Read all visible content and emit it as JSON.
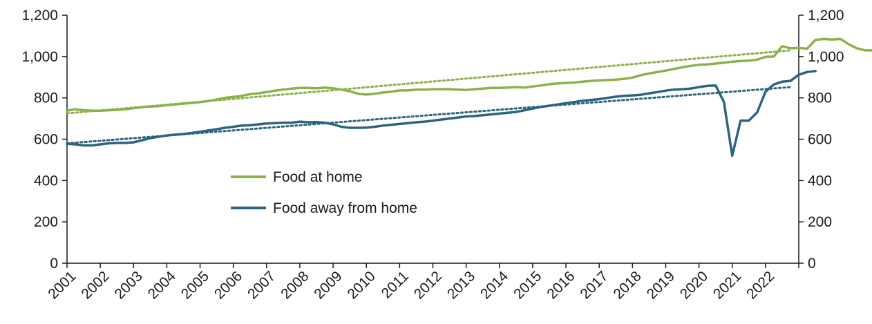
{
  "chart_data": {
    "type": "line",
    "title": "",
    "xlabel": "",
    "ylabel": "",
    "x_tick_labels": [
      "2001",
      "2002",
      "2003",
      "2004",
      "2005",
      "2006",
      "2007",
      "2008",
      "2009",
      "2010",
      "2011",
      "2012",
      "2013",
      "2014",
      "2015",
      "2016",
      "2017",
      "2018",
      "2019",
      "2020",
      "2021",
      "2022"
    ],
    "y_tick_labels": [
      "0",
      "200",
      "400",
      "600",
      "800",
      "1,000",
      "1,200"
    ],
    "ylim": [
      0,
      1200
    ],
    "xlim": [
      2001.0,
      2023.0
    ],
    "grid": false,
    "secondary_y_axis": true,
    "legend_position": "center-left",
    "series": [
      {
        "name": "Food at home",
        "color": "#8db04a",
        "x_start": 2001.0,
        "x_step": 0.25,
        "values": [
          738,
          745,
          740,
          738,
          738,
          740,
          742,
          745,
          750,
          755,
          758,
          760,
          765,
          768,
          772,
          775,
          780,
          785,
          792,
          800,
          805,
          810,
          818,
          822,
          828,
          835,
          840,
          845,
          848,
          848,
          846,
          850,
          846,
          840,
          832,
          820,
          816,
          820,
          826,
          830,
          836,
          836,
          840,
          840,
          842,
          842,
          842,
          840,
          838,
          842,
          845,
          848,
          848,
          850,
          852,
          850,
          855,
          860,
          866,
          870,
          872,
          874,
          878,
          882,
          884,
          886,
          888,
          892,
          898,
          910,
          918,
          925,
          932,
          940,
          948,
          955,
          960,
          962,
          966,
          970,
          975,
          978,
          980,
          985,
          998,
          1000,
          1050,
          1040,
          1042,
          1038,
          1080,
          1085,
          1082,
          1085,
          1060,
          1040,
          1030,
          1030
        ]
      },
      {
        "name": "Food away from home",
        "color": "#2c6480",
        "x_start": 2001.0,
        "x_step": 0.25,
        "values": [
          578,
          575,
          570,
          570,
          575,
          580,
          582,
          582,
          585,
          595,
          605,
          612,
          618,
          622,
          625,
          630,
          636,
          642,
          648,
          655,
          660,
          666,
          668,
          672,
          676,
          678,
          680,
          680,
          685,
          682,
          683,
          680,
          672,
          660,
          655,
          655,
          656,
          660,
          666,
          670,
          674,
          678,
          682,
          685,
          690,
          695,
          700,
          705,
          710,
          712,
          716,
          720,
          724,
          728,
          732,
          740,
          748,
          756,
          762,
          768,
          774,
          780,
          786,
          790,
          794,
          800,
          806,
          810,
          812,
          815,
          822,
          828,
          835,
          840,
          842,
          845,
          852,
          858,
          860,
          780,
          520,
          690,
          690,
          730,
          830,
          865,
          878,
          882,
          912,
          925,
          930
        ]
      }
    ],
    "trendlines": [
      {
        "series": "Food at home",
        "style": "dotted",
        "start": [
          2001.0,
          725
        ],
        "end": [
          2022.75,
          1030
        ]
      },
      {
        "series": "Food away from home",
        "style": "dotted",
        "start": [
          2001.0,
          580
        ],
        "end": [
          2022.75,
          852
        ]
      }
    ]
  }
}
